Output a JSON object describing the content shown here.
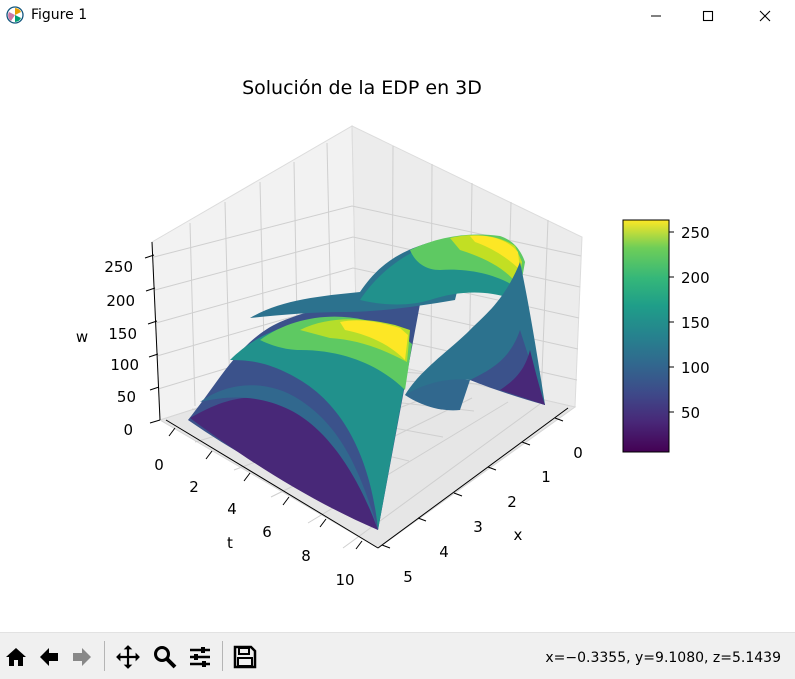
{
  "window": {
    "title": "Figure 1"
  },
  "chart_data": {
    "type": "surface",
    "title": "Solución de la EDP en 3D",
    "xlabel": "x",
    "ylabel": "t",
    "zlabel": "w",
    "x_ticks": [
      "0",
      "1",
      "2",
      "3",
      "4",
      "5"
    ],
    "t_ticks": [
      "0",
      "2",
      "4",
      "6",
      "8",
      "10"
    ],
    "w_ticks": [
      "0",
      "50",
      "100",
      "150",
      "200",
      "250"
    ],
    "xlim": [
      0,
      5
    ],
    "tlim": [
      0,
      10
    ],
    "zlim": [
      0,
      270
    ],
    "colormap": "viridis",
    "colorbar_ticks": [
      "50",
      "100",
      "150",
      "200",
      "250"
    ],
    "colorbar_range": [
      5,
      262
    ],
    "colors": {
      "viridis_low": "#440154",
      "viridis_mid": "#21918c",
      "viridis_high": "#fde725"
    }
  },
  "toolbar": {
    "items": [
      "home-icon",
      "back-arrow-icon",
      "forward-arrow-icon",
      "pan-icon",
      "zoom-icon",
      "configure-subplots-icon",
      "save-icon"
    ],
    "coords_text": "x=−0.3355, y=9.1080, z=5.1439"
  }
}
